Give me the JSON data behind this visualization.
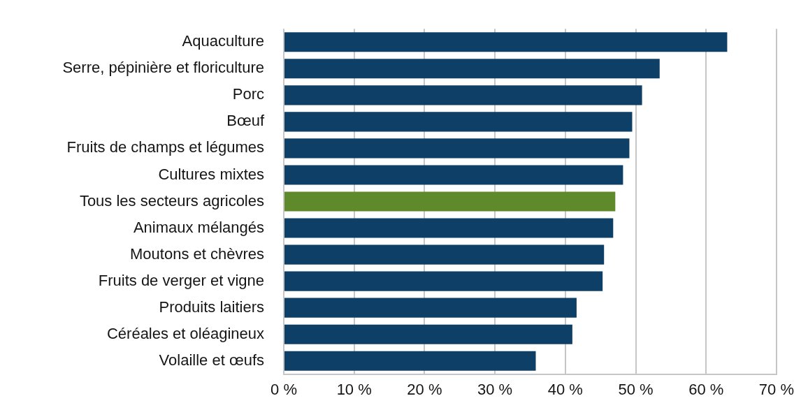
{
  "chart_data": {
    "type": "bar",
    "orientation": "horizontal",
    "categories": [
      "Aquaculture",
      "Serre, pépinière et floriculture",
      "Porc",
      "Bœuf",
      "Fruits de champs et légumes",
      "Cultures mixtes",
      "Tous les secteurs agricoles",
      "Animaux mélangés",
      "Moutons et chèvres",
      "Fruits de verger et vigne",
      "Produits laitiers",
      "Céréales et oléagineux",
      "Volaille et œufs"
    ],
    "values": [
      63.0,
      53.4,
      50.9,
      49.5,
      49.1,
      48.2,
      47.1,
      46.8,
      45.5,
      45.3,
      41.6,
      41.0,
      35.8
    ],
    "colors": [
      "#0e3f66",
      "#0e3f66",
      "#0e3f66",
      "#0e3f66",
      "#0e3f66",
      "#0e3f66",
      "#5f8a2b",
      "#0e3f66",
      "#0e3f66",
      "#0e3f66",
      "#0e3f66",
      "#0e3f66",
      "#0e3f66"
    ],
    "xlim": [
      0,
      70
    ],
    "xticks": [
      {
        "value": 0,
        "label": "0 %"
      },
      {
        "value": 10,
        "label": "10 %"
      },
      {
        "value": 20,
        "label": "20 %"
      },
      {
        "value": 30,
        "label": "30 %"
      },
      {
        "value": 40,
        "label": "40 %"
      },
      {
        "value": 50,
        "label": "50 %"
      },
      {
        "value": 60,
        "label": "60 %"
      },
      {
        "value": 70,
        "label": "70 %"
      }
    ],
    "grid": "x"
  }
}
